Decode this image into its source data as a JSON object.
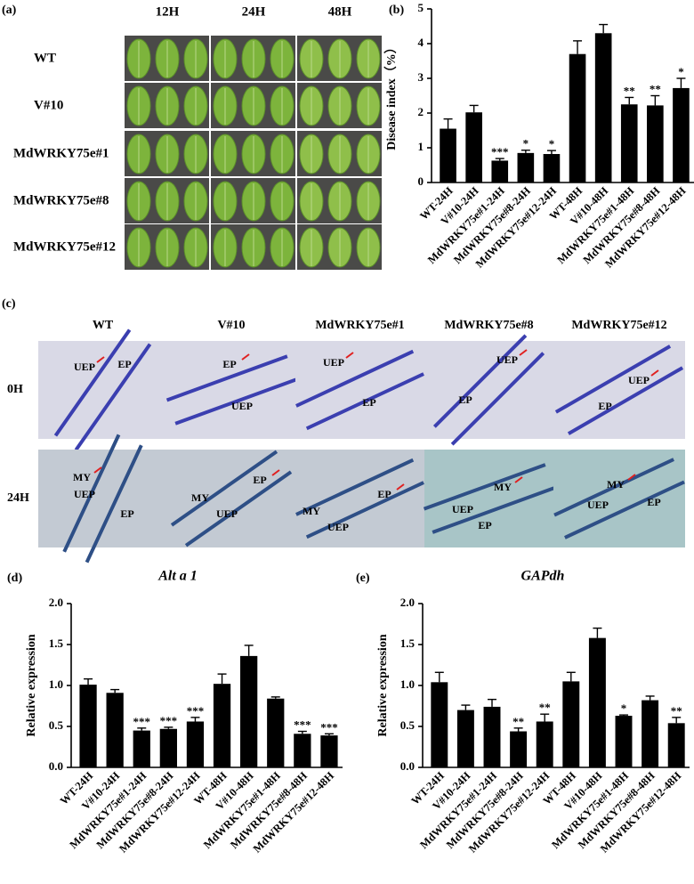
{
  "panel_a": {
    "label": "(a)",
    "columns": [
      "12H",
      "24H",
      "48H"
    ],
    "rows": [
      "WT",
      "V#10",
      "MdWRKY75e#1",
      "MdWRKY75e#8",
      "MdWRKY75e#12"
    ]
  },
  "panel_c": {
    "label": "(c)",
    "columns": [
      "WT",
      "V#10",
      "MdWRKY75e#1",
      "MdWRKY75e#8",
      "MdWRKY75e#12"
    ],
    "rows": [
      "0H",
      "24H"
    ],
    "annotations": [
      [
        [
          "UEP",
          "EP"
        ],
        [
          "EP",
          "UEP"
        ],
        [
          "UEP",
          "EP"
        ],
        [
          "UEP",
          "EP"
        ],
        [
          "UEP",
          "EP"
        ]
      ],
      [
        [
          "MY",
          "UEP",
          "EP"
        ],
        [
          "EP",
          "MY",
          "UEP"
        ],
        [
          "EP",
          "MY",
          "UEP"
        ],
        [
          "MY",
          "UEP",
          "EP"
        ],
        [
          "MY",
          "UEP",
          "EP"
        ]
      ]
    ]
  },
  "chart_data": [
    {
      "type": "bar",
      "panel_label": "(b)",
      "y_label": "Disease index（%）",
      "categories": [
        "WT-24H",
        "V#10-24H",
        "MdWRKY75e#1-24H",
        "MdWRKY75e#8-24H",
        "MdWRKY75e#12-24H",
        "WT-48H",
        "V#10-48H",
        "MdWRKY75e#1-48H",
        "MdWRKY75e#8-48H",
        "MdWRKY75e#12-48H"
      ],
      "values": [
        1.55,
        2.02,
        0.63,
        0.85,
        0.82,
        3.7,
        4.3,
        2.25,
        2.22,
        2.72
      ],
      "errors": [
        0.28,
        0.2,
        0.06,
        0.08,
        0.1,
        0.38,
        0.25,
        0.2,
        0.28,
        0.28
      ],
      "significance": [
        null,
        null,
        "***",
        "*",
        "*",
        null,
        null,
        "**",
        "**",
        "*"
      ],
      "color": "#000000",
      "ylim": [
        0,
        5
      ],
      "yticks": [
        0,
        1,
        2,
        3,
        4,
        5
      ]
    },
    {
      "type": "bar",
      "panel_label": "(d)",
      "title": "Alt a 1",
      "y_label": "Relative expression",
      "categories": [
        "WT-24H",
        "V#10-24H",
        "MdWRKY75e#1-24H",
        "MdWRKY75e#8-24H",
        "MdWRKY75e#12-24H",
        "WT-48H",
        "V#10-48H",
        "MdWRKY75e#1-48H",
        "MdWRKY75e#8-48H",
        "MdWRKY75e#12-48H"
      ],
      "values": [
        1.01,
        0.91,
        0.45,
        0.47,
        0.56,
        1.02,
        1.36,
        0.84,
        0.41,
        0.39
      ],
      "errors": [
        0.07,
        0.04,
        0.03,
        0.02,
        0.05,
        0.12,
        0.13,
        0.02,
        0.03,
        0.02
      ],
      "significance": [
        null,
        null,
        "***",
        "***",
        "***",
        null,
        null,
        null,
        "***",
        "***"
      ],
      "color": "#000000",
      "ylim": [
        0,
        2
      ],
      "yticks": [
        {
          "value": 0,
          "label": "0.0"
        },
        {
          "value": 0.5,
          "label": "0.5"
        },
        {
          "value": 1,
          "label": "1.0"
        },
        {
          "value": 1.5,
          "label": "1.5"
        },
        {
          "value": 2,
          "label": "2.0"
        }
      ]
    },
    {
      "type": "bar",
      "panel_label": "(e)",
      "title": "GAPdh",
      "y_label": "Relative expression",
      "categories": [
        "WT-24H",
        "V#10-24H",
        "MdWRKY75e#1-24H",
        "MdWRKY75e#8-24H",
        "MdWRKY75e#12-24H",
        "WT-48H",
        "V#10-48H",
        "MdWRKY75e#1-48H",
        "MdWRKY75e#8-48H",
        "MdWRKY75e#12-48H"
      ],
      "values": [
        1.04,
        0.7,
        0.74,
        0.44,
        0.56,
        1.05,
        1.58,
        0.63,
        0.82,
        0.54
      ],
      "errors": [
        0.12,
        0.06,
        0.09,
        0.04,
        0.09,
        0.11,
        0.12,
        0.01,
        0.05,
        0.07
      ],
      "significance": [
        null,
        null,
        null,
        "**",
        "**",
        null,
        null,
        "*",
        null,
        "**"
      ],
      "color": "#000000",
      "ylim": [
        0,
        2
      ],
      "yticks": [
        {
          "value": 0,
          "label": "0.0"
        },
        {
          "value": 0.5,
          "label": "0.5"
        },
        {
          "value": 1,
          "label": "1.0"
        },
        {
          "value": 1.5,
          "label": "1.5"
        },
        {
          "value": 2,
          "label": "2.0"
        }
      ]
    }
  ]
}
